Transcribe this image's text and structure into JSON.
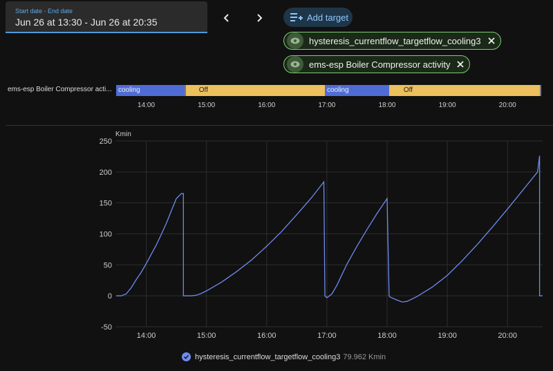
{
  "date_range": {
    "label": "Start date - End date",
    "value": "Jun 26 at 13:30 - Jun 26 at 20:35"
  },
  "nav": {
    "prev_icon": "chevron-left-icon",
    "next_icon": "chevron-right-icon"
  },
  "add_target": {
    "label": "Add target",
    "icon": "playlist-add-icon"
  },
  "targets": [
    {
      "label": "hysteresis_currentflow_targetflow_cooling3"
    },
    {
      "label": "ems-esp Boiler Compressor activity"
    }
  ],
  "timeline": {
    "label": "ems-esp Boiler Compressor acti...",
    "segments": [
      {
        "state": "cooling",
        "start": "13:30",
        "end": "14:38"
      },
      {
        "state": "Off",
        "start": "14:38",
        "end": "16:58"
      },
      {
        "state": "cooling",
        "start": "16:58",
        "end": "18:02"
      },
      {
        "state": "Off",
        "start": "18:02",
        "end": "20:32"
      }
    ],
    "ticks": [
      "14:00",
      "15:00",
      "16:00",
      "17:00",
      "18:00",
      "19:00",
      "20:00"
    ],
    "colors": {
      "cooling": "#4f6cd6",
      "Off": "#ecc05c"
    }
  },
  "legend": {
    "series_name": "hysteresis_currentflow_targetflow_cooling3",
    "value": "79.962 Kmin",
    "color": "#6e8cf0"
  },
  "chart_data": {
    "type": "line",
    "ylabel": "Kmin",
    "ylim": [
      -50,
      250
    ],
    "yticks": [
      250,
      200,
      150,
      100,
      50,
      0,
      -50
    ],
    "xlim": [
      "13:30",
      "20:35"
    ],
    "xticks": [
      "14:00",
      "15:00",
      "16:00",
      "17:00",
      "18:00",
      "19:00",
      "20:00"
    ],
    "grid": true,
    "series": [
      {
        "name": "hysteresis_currentflow_targetflow_cooling3",
        "color": "#6e8cf0",
        "x": [
          "13:30",
          "13:35",
          "13:40",
          "13:45",
          "13:50",
          "13:55",
          "14:00",
          "14:05",
          "14:10",
          "14:15",
          "14:20",
          "14:25",
          "14:30",
          "14:35",
          "14:37",
          "14:37",
          "14:45",
          "14:50",
          "14:55",
          "15:00",
          "15:15",
          "15:30",
          "15:45",
          "16:00",
          "16:15",
          "16:30",
          "16:45",
          "16:57",
          "16:58",
          "17:00",
          "17:05",
          "17:10",
          "17:15",
          "17:20",
          "17:30",
          "17:40",
          "17:50",
          "18:00",
          "18:02",
          "18:03",
          "18:10",
          "18:15",
          "18:20",
          "18:30",
          "18:45",
          "19:00",
          "19:15",
          "19:30",
          "19:45",
          "20:00",
          "20:15",
          "20:30",
          "20:32",
          "20:32",
          "20:35"
        ],
        "y": [
          0,
          0,
          3,
          13,
          26,
          38,
          52,
          67,
          82,
          99,
          117,
          137,
          157,
          165,
          165,
          0,
          0,
          1,
          4,
          8,
          22,
          39,
          58,
          80,
          104,
          131,
          159,
          184,
          0,
          -3,
          3,
          17,
          34,
          51,
          80,
          107,
          133,
          157,
          0,
          -2,
          -7,
          -10,
          -9,
          -1,
          14,
          33,
          57,
          83,
          111,
          140,
          170,
          200,
          226,
          0,
          0
        ]
      }
    ]
  }
}
